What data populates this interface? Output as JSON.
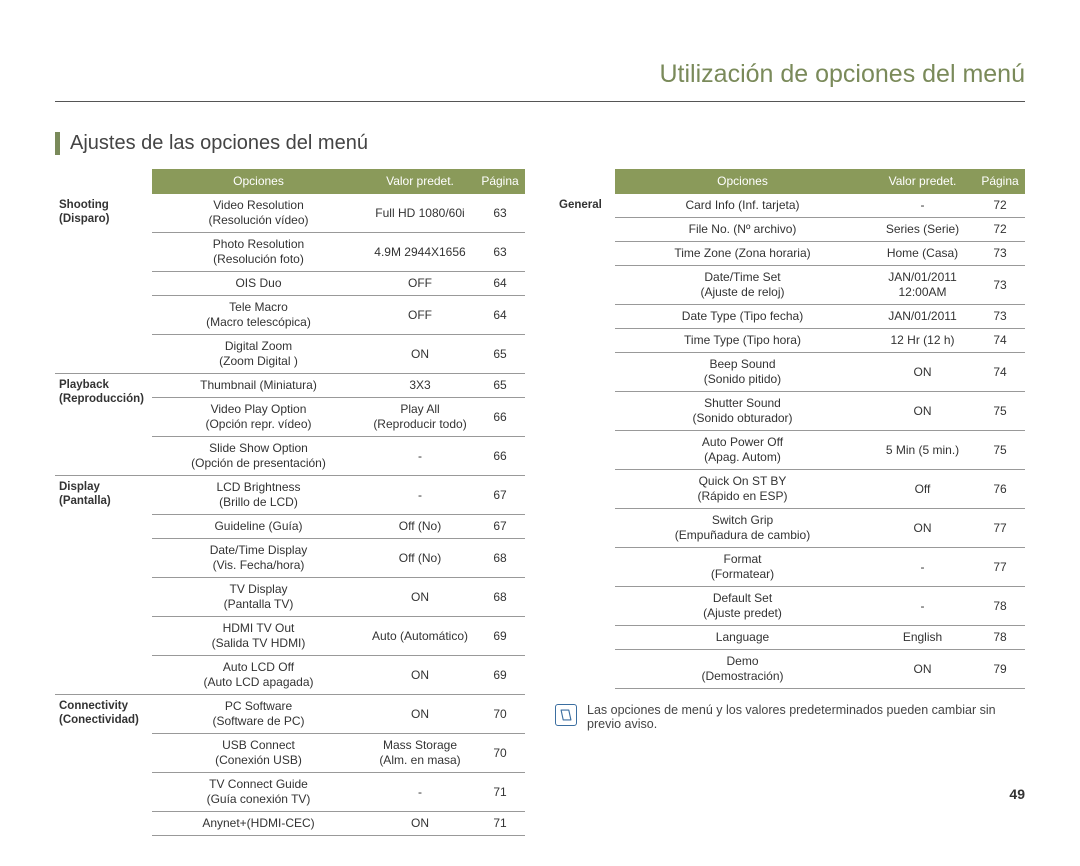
{
  "page_title": "Utilización de opciones del menú",
  "section_title": "Ajustes de las opciones del menú",
  "page_number": "49",
  "note_text": "Las opciones de menú y los valores predeterminados pueden cambiar sin previo aviso.",
  "headers": {
    "options": "Opciones",
    "default": "Valor predet.",
    "page": "Página"
  },
  "left": {
    "groups": [
      {
        "cat_main": "Shooting",
        "cat_sub": "(Disparo)",
        "rows": [
          {
            "opt": "Video Resolution\n(Resolución vídeo)",
            "val": "Full HD 1080/60i",
            "page": "63"
          },
          {
            "opt": "Photo Resolution\n(Resolución foto)",
            "val": "4.9M 2944X1656",
            "page": "63"
          },
          {
            "opt": "OIS Duo",
            "val": "OFF",
            "page": "64"
          },
          {
            "opt": "Tele Macro\n(Macro telescópica)",
            "val": "OFF",
            "page": "64"
          },
          {
            "opt": "Digital Zoom\n(Zoom Digital )",
            "val": "ON",
            "page": "65"
          }
        ]
      },
      {
        "cat_main": "Playback",
        "cat_sub": "(Reproducción)",
        "rows": [
          {
            "opt": "Thumbnail (Miniatura)",
            "val": "3X3",
            "page": "65"
          },
          {
            "opt": "Video Play Option\n(Opción repr. vídeo)",
            "val": "Play All\n(Reproducir todo)",
            "page": "66"
          },
          {
            "opt": "Slide Show Option\n(Opción de presentación)",
            "val": "-",
            "page": "66"
          }
        ]
      },
      {
        "cat_main": "Display",
        "cat_sub": "(Pantalla)",
        "rows": [
          {
            "opt": "LCD Brightness\n(Brillo de LCD)",
            "val": "-",
            "page": "67"
          },
          {
            "opt": "Guideline (Guía)",
            "val": "Off (No)",
            "page": "67"
          },
          {
            "opt": "Date/Time Display\n(Vis. Fecha/hora)",
            "val": "Off (No)",
            "page": "68"
          },
          {
            "opt": "TV Display\n(Pantalla TV)",
            "val": "ON",
            "page": "68"
          },
          {
            "opt": "HDMI TV Out\n(Salida TV HDMI)",
            "val": "Auto (Automático)",
            "page": "69"
          },
          {
            "opt": "Auto LCD Off\n(Auto LCD apagada)",
            "val": "ON",
            "page": "69"
          }
        ]
      },
      {
        "cat_main": "Connectivity",
        "cat_sub": "(Conectividad)",
        "rows": [
          {
            "opt": "PC Software\n(Software de PC)",
            "val": "ON",
            "page": "70"
          },
          {
            "opt": "USB Connect\n(Conexión USB)",
            "val": "Mass Storage\n(Alm. en masa)",
            "page": "70"
          },
          {
            "opt": "TV Connect Guide\n(Guía conexión TV)",
            "val": "-",
            "page": "71"
          },
          {
            "opt": "Anynet+(HDMI-CEC)",
            "val": "ON",
            "page": "71"
          }
        ]
      }
    ]
  },
  "right": {
    "groups": [
      {
        "cat_main": "General",
        "cat_sub": "",
        "rows": [
          {
            "opt": "Card Info (Inf. tarjeta)",
            "val": "-",
            "page": "72"
          },
          {
            "opt": "File No. (Nº archivo)",
            "val": "Series (Serie)",
            "page": "72"
          },
          {
            "opt": "Time Zone (Zona horaria)",
            "val": "Home (Casa)",
            "page": "73"
          },
          {
            "opt": "Date/Time Set\n(Ajuste de reloj)",
            "val": "JAN/01/2011\n12:00AM",
            "page": "73"
          },
          {
            "opt": "Date Type (Tipo fecha)",
            "val": "JAN/01/2011",
            "page": "73"
          },
          {
            "opt": "Time Type (Tipo hora)",
            "val": "12 Hr (12 h)",
            "page": "74"
          },
          {
            "opt": "Beep Sound\n(Sonido pitido)",
            "val": "ON",
            "page": "74"
          },
          {
            "opt": "Shutter Sound\n(Sonido obturador)",
            "val": "ON",
            "page": "75"
          },
          {
            "opt": "Auto Power Off\n(Apag. Autom)",
            "val": "5 Min (5 min.)",
            "page": "75"
          },
          {
            "opt": "Quick On ST BY\n(Rápido en ESP)",
            "val": "Off",
            "page": "76"
          },
          {
            "opt": "Switch Grip\n(Empuñadura de cambio)",
            "val": "ON",
            "page": "77"
          },
          {
            "opt": "Format\n(Formatear)",
            "val": "-",
            "page": "77"
          },
          {
            "opt": "Default Set\n(Ajuste predet)",
            "val": "-",
            "page": "78"
          },
          {
            "opt": "Language",
            "val": "English",
            "page": "78"
          },
          {
            "opt": "Demo\n(Demostración)",
            "val": "ON",
            "page": "79"
          }
        ]
      }
    ]
  },
  "colors": {
    "accent": "#8a9a5a",
    "title": "#7a8a5a",
    "border": "#999999",
    "text": "#333333",
    "note_icon": "#3b6ea0"
  }
}
